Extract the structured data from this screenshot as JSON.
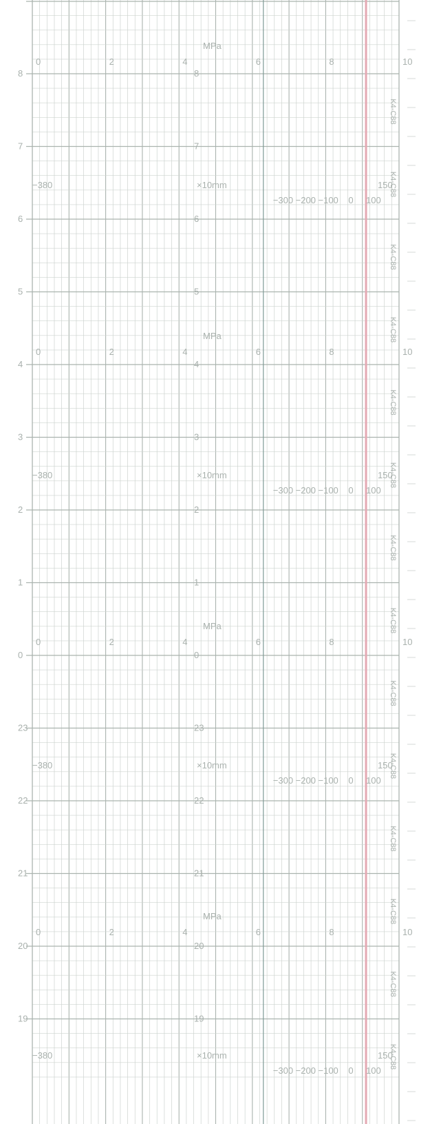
{
  "chart_data": {
    "type": "strip-chart-paper",
    "colors": {
      "paper": "#ffffff",
      "grid": "#cdd3cf",
      "grid_major": "#aab3ae",
      "label": "#a9b1ad",
      "center_line": "#7f9a96",
      "pen_trace": "#e4a9b3"
    },
    "pressure_scale": {
      "unit": "MPa",
      "ticks": [
        "0",
        "2",
        "4",
        "6",
        "8",
        "10"
      ]
    },
    "displacement_scale": {
      "unit": "×10mm",
      "ends": [
        "−380",
        "150"
      ],
      "ticks": [
        "−300",
        "−200",
        "−100",
        "0",
        "100"
      ]
    },
    "time_labels": [
      "8",
      "7",
      "6",
      "5",
      "4",
      "3",
      "2",
      "1",
      "0",
      "23",
      "22",
      "21",
      "20",
      "19"
    ],
    "paper_code": "K4-C88",
    "pen_trace": {
      "pressure_MPa": 9.1,
      "displacement_x10mm": 95
    }
  }
}
